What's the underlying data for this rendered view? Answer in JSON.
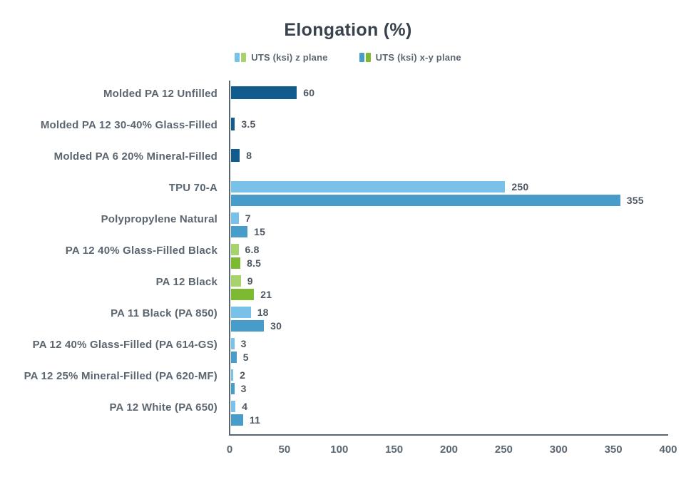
{
  "chart_data": {
    "type": "bar",
    "orientation": "horizontal",
    "title": "Elongation (%)",
    "legend": [
      {
        "label": "UTS (ksi) z plane",
        "colors": [
          "#79c1e8",
          "#a7d36c"
        ]
      },
      {
        "label": "UTS (ksi) x-y plane",
        "colors": [
          "#479cc9",
          "#7eb932"
        ]
      }
    ],
    "legend_position": "top-center",
    "grid": false,
    "xlim": [
      0,
      400
    ],
    "x_ticks": [
      0,
      50,
      100,
      150,
      200,
      250,
      300,
      350,
      400
    ],
    "colors": {
      "reference_bar": "#115c8d",
      "z_blue": "#79c1e8",
      "xy_blue": "#479cc9",
      "z_green": "#a7d36c",
      "xy_green": "#7eb932",
      "axis": "#5a6670",
      "label_text": "#5b6670",
      "title_text": "#39424d"
    },
    "rows": [
      {
        "label": "Molded PA 12 Unfilled",
        "bars": [
          {
            "series": "reference",
            "value": 60,
            "display": "60",
            "color": "#115c8d"
          }
        ]
      },
      {
        "label": "Molded PA 12 30-40% Glass-Filled",
        "bars": [
          {
            "series": "reference",
            "value": 3.5,
            "display": "3.5",
            "color": "#115c8d"
          }
        ]
      },
      {
        "label": "Molded PA 6 20% Mineral-Filled",
        "bars": [
          {
            "series": "reference",
            "value": 8,
            "display": "8",
            "color": "#115c8d"
          }
        ]
      },
      {
        "label": "TPU 70-A",
        "bars": [
          {
            "series": "z",
            "value": 250,
            "display": "250",
            "color": "#79c1e8"
          },
          {
            "series": "xy",
            "value": 355,
            "display": "355",
            "color": "#479cc9"
          }
        ]
      },
      {
        "label": "Polypropylene Natural",
        "bars": [
          {
            "series": "z",
            "value": 7,
            "display": "7",
            "color": "#79c1e8"
          },
          {
            "series": "xy",
            "value": 15,
            "display": "15",
            "color": "#479cc9"
          }
        ]
      },
      {
        "label": "PA 12 40% Glass-Filled Black",
        "bars": [
          {
            "series": "z",
            "value": 6.8,
            "display": "6.8",
            "color": "#a7d36c"
          },
          {
            "series": "xy",
            "value": 8.5,
            "display": "8.5",
            "color": "#7eb932"
          }
        ]
      },
      {
        "label": "PA 12 Black",
        "bars": [
          {
            "series": "z",
            "value": 9,
            "display": "9",
            "color": "#a7d36c"
          },
          {
            "series": "xy",
            "value": 21,
            "display": "21",
            "color": "#7eb932"
          }
        ]
      },
      {
        "label": "PA 11 Black (PA 850)",
        "bars": [
          {
            "series": "z",
            "value": 18,
            "display": "18",
            "color": "#79c1e8"
          },
          {
            "series": "xy",
            "value": 30,
            "display": "30",
            "color": "#479cc9"
          }
        ]
      },
      {
        "label": "PA 12 40% Glass-Filled (PA 614-GS)",
        "bars": [
          {
            "series": "z",
            "value": 3,
            "display": "3",
            "color": "#79c1e8"
          },
          {
            "series": "xy",
            "value": 5,
            "display": "5",
            "color": "#479cc9"
          }
        ]
      },
      {
        "label": "PA 12 25% Mineral-Filled (PA 620-MF)",
        "bars": [
          {
            "series": "z",
            "value": 2,
            "display": "2",
            "color": "#79c1e8"
          },
          {
            "series": "xy",
            "value": 3,
            "display": "3",
            "color": "#479cc9"
          }
        ]
      },
      {
        "label": "PA 12 White (PA 650)",
        "bars": [
          {
            "series": "z",
            "value": 4,
            "display": "4",
            "color": "#79c1e8"
          },
          {
            "series": "xy",
            "value": 11,
            "display": "11",
            "color": "#479cc9"
          }
        ]
      }
    ]
  }
}
